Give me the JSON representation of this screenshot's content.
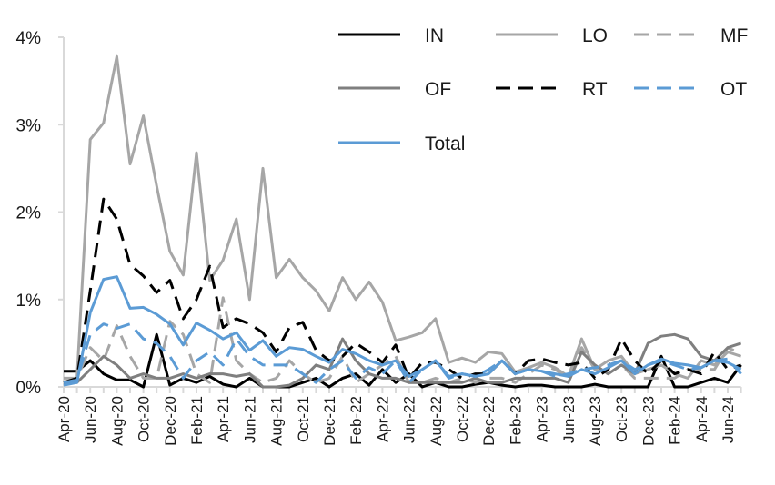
{
  "chart_data": {
    "type": "line",
    "title": "",
    "xlabel": "",
    "ylabel": "",
    "ylim": [
      0,
      4
    ],
    "yticks": [
      "0%",
      "1%",
      "2%",
      "3%",
      "4%"
    ],
    "grid": false,
    "legend_position": "top-right",
    "x": [
      "Apr-20",
      "May-20",
      "Jun-20",
      "Jul-20",
      "Aug-20",
      "Sep-20",
      "Oct-20",
      "Nov-20",
      "Dec-20",
      "Jan-21",
      "Feb-21",
      "Mar-21",
      "Apr-21",
      "May-21",
      "Jun-21",
      "Jul-21",
      "Aug-21",
      "Sep-21",
      "Oct-21",
      "Nov-21",
      "Dec-21",
      "Jan-22",
      "Feb-22",
      "Mar-22",
      "Apr-22",
      "May-22",
      "Jun-22",
      "Jul-22",
      "Aug-22",
      "Sep-22",
      "Oct-22",
      "Nov-22",
      "Dec-22",
      "Jan-23",
      "Feb-23",
      "Mar-23",
      "Apr-23",
      "May-23",
      "Jun-23",
      "Jul-23",
      "Aug-23",
      "Sep-23",
      "Oct-23",
      "Nov-23",
      "Dec-23",
      "Jan-24",
      "Feb-24",
      "Mar-24",
      "Apr-24",
      "May-24",
      "Jun-24",
      "Jul-24"
    ],
    "xtick_labels": [
      "Apr-20",
      "Jun-20",
      "Aug-20",
      "Oct-20",
      "Dec-20",
      "Feb-21",
      "Apr-21",
      "Jun-21",
      "Aug-21",
      "Oct-21",
      "Dec-21",
      "Feb-22",
      "Apr-22",
      "Jun-22",
      "Aug-22",
      "Oct-22",
      "Dec-22",
      "Feb-23",
      "Apr-23",
      "Jun-23",
      "Aug-23",
      "Oct-23",
      "Dec-23",
      "Feb-24",
      "Apr-24",
      "Jun-24"
    ],
    "series": [
      {
        "name": "IN",
        "color": "#000000",
        "dash": false,
        "values": [
          0.18,
          0.18,
          0.3,
          0.15,
          0.08,
          0.08,
          0.0,
          0.6,
          0.02,
          0.1,
          0.05,
          0.12,
          0.03,
          0.0,
          0.1,
          0.0,
          0.0,
          0.0,
          0.05,
          0.1,
          0.0,
          0.1,
          0.15,
          0.02,
          0.2,
          0.05,
          0.15,
          0.0,
          0.05,
          0.0,
          0.0,
          0.03,
          0.05,
          0.02,
          0.0,
          0.02,
          0.02,
          0.0,
          0.0,
          0.0,
          0.03,
          0.0,
          0.0,
          0.0,
          0.0,
          0.35,
          0.0,
          0.0,
          0.05,
          0.1,
          0.05,
          0.25
        ]
      },
      {
        "name": "LO",
        "color": "#a6a6a6",
        "dash": false,
        "values": [
          0.05,
          0.1,
          2.83,
          3.02,
          3.78,
          2.55,
          3.1,
          2.3,
          1.55,
          1.28,
          2.68,
          1.22,
          1.45,
          1.92,
          1.0,
          2.5,
          1.25,
          1.46,
          1.25,
          1.1,
          0.87,
          1.25,
          1.0,
          1.2,
          0.97,
          0.53,
          0.57,
          0.62,
          0.78,
          0.28,
          0.33,
          0.28,
          0.4,
          0.38,
          0.17,
          0.22,
          0.28,
          0.22,
          0.12,
          0.55,
          0.2,
          0.3,
          0.35,
          0.15,
          0.2,
          0.25,
          0.15,
          0.1,
          0.3,
          0.25,
          0.4,
          0.35
        ]
      },
      {
        "name": "MF",
        "color": "#a6a6a6",
        "dash": true,
        "values": [
          0.1,
          0.1,
          0.45,
          0.3,
          0.7,
          0.35,
          0.1,
          0.1,
          0.75,
          0.6,
          0.15,
          0.05,
          1.02,
          0.3,
          0.15,
          0.05,
          0.1,
          0.3,
          0.15,
          0.05,
          0.1,
          0.35,
          0.05,
          0.15,
          0.25,
          0.35,
          0.05,
          0.05,
          0.1,
          0.05,
          0.1,
          0.05,
          0.1,
          0.1,
          0.05,
          0.15,
          0.25,
          0.2,
          0.1,
          0.45,
          0.2,
          0.15,
          0.25,
          0.1,
          0.1,
          0.1,
          0.1,
          0.2,
          0.2,
          0.2,
          0.45,
          0.38
        ]
      },
      {
        "name": "OF",
        "color": "#7f7f7f",
        "dash": false,
        "values": [
          0.05,
          0.05,
          0.2,
          0.35,
          0.25,
          0.1,
          0.15,
          0.1,
          0.1,
          0.15,
          0.1,
          0.15,
          0.15,
          0.12,
          0.15,
          0.0,
          0.0,
          0.02,
          0.1,
          0.25,
          0.2,
          0.55,
          0.3,
          0.15,
          0.1,
          0.1,
          0.05,
          0.05,
          0.05,
          0.05,
          0.05,
          0.1,
          0.05,
          0.05,
          0.1,
          0.1,
          0.1,
          0.1,
          0.05,
          0.4,
          0.25,
          0.15,
          0.25,
          0.15,
          0.5,
          0.58,
          0.6,
          0.55,
          0.35,
          0.3,
          0.45,
          0.5
        ]
      },
      {
        "name": "RT",
        "color": "#000000",
        "dash": true,
        "values": [
          0.05,
          0.1,
          1.1,
          2.15,
          1.92,
          1.4,
          1.27,
          1.08,
          1.22,
          0.78,
          1.0,
          1.38,
          0.68,
          0.78,
          0.72,
          0.62,
          0.4,
          0.68,
          0.74,
          0.42,
          0.3,
          0.35,
          0.5,
          0.4,
          0.28,
          0.48,
          0.1,
          0.28,
          0.28,
          0.2,
          0.1,
          0.15,
          0.15,
          0.3,
          0.15,
          0.3,
          0.32,
          0.28,
          0.25,
          0.28,
          0.1,
          0.2,
          0.55,
          0.3,
          0.15,
          0.3,
          0.15,
          0.2,
          0.15,
          0.4,
          0.2,
          0.25
        ]
      },
      {
        "name": "OT",
        "color": "#5b9bd5",
        "dash": true,
        "values": [
          0.05,
          0.08,
          0.6,
          0.72,
          0.67,
          0.72,
          0.55,
          0.5,
          0.35,
          0.1,
          0.3,
          0.4,
          0.25,
          0.55,
          0.35,
          0.25,
          0.25,
          0.25,
          0.15,
          0.05,
          0.2,
          0.3,
          0.1,
          0.22,
          0.15,
          0.3,
          0.05,
          0.2,
          0.3,
          0.1,
          0.15,
          0.12,
          0.2,
          0.3,
          0.15,
          0.2,
          0.18,
          0.12,
          0.15,
          0.2,
          0.22,
          0.25,
          0.3,
          0.2,
          0.25,
          0.3,
          0.25,
          0.2,
          0.22,
          0.3,
          0.32,
          0.15
        ]
      },
      {
        "name": "Total",
        "color": "#5b9bd5",
        "dash": false,
        "values": [
          0.02,
          0.05,
          0.85,
          1.23,
          1.26,
          0.9,
          0.91,
          0.83,
          0.72,
          0.48,
          0.73,
          0.65,
          0.55,
          0.62,
          0.42,
          0.53,
          0.35,
          0.45,
          0.43,
          0.35,
          0.28,
          0.43,
          0.38,
          0.3,
          0.25,
          0.3,
          0.12,
          0.2,
          0.3,
          0.12,
          0.15,
          0.12,
          0.15,
          0.3,
          0.15,
          0.2,
          0.18,
          0.15,
          0.12,
          0.2,
          0.15,
          0.22,
          0.3,
          0.15,
          0.25,
          0.32,
          0.27,
          0.25,
          0.22,
          0.3,
          0.28,
          0.2
        ]
      }
    ]
  }
}
